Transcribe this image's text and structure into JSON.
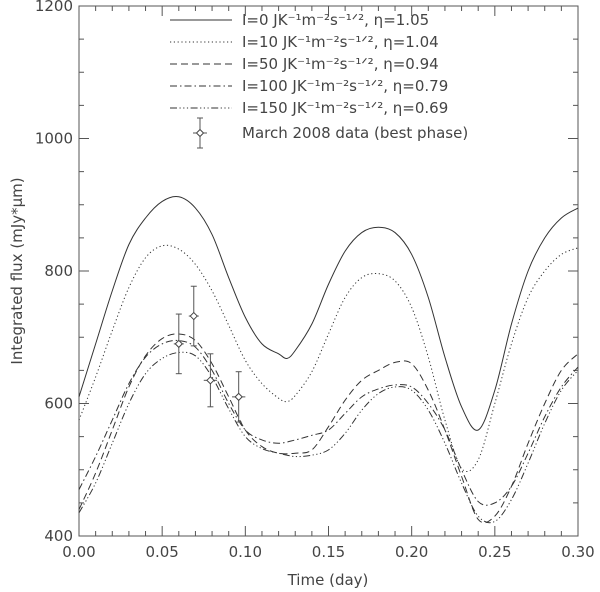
{
  "chart_data": {
    "type": "line",
    "xlabel": "Time (day)",
    "ylabel": "Integrated flux (mJy*μm)",
    "xlim": [
      0.0,
      0.3
    ],
    "ylim": [
      400,
      1200
    ],
    "xticks": [
      "0.00",
      "0.05",
      "0.10",
      "0.15",
      "0.20",
      "0.25",
      "0.30"
    ],
    "yticks": [
      "400",
      "600",
      "800",
      "1000",
      "1200"
    ],
    "legend_position": "top-right",
    "series": [
      {
        "name": "I=0 JK⁻¹m⁻²s⁻¹ᐟ², η=1.05",
        "dash": "solid",
        "x": [
          0.0,
          0.01,
          0.02,
          0.03,
          0.04,
          0.05,
          0.06,
          0.07,
          0.08,
          0.09,
          0.1,
          0.11,
          0.12,
          0.125,
          0.13,
          0.14,
          0.15,
          0.16,
          0.17,
          0.18,
          0.19,
          0.2,
          0.21,
          0.22,
          0.23,
          0.24,
          0.25,
          0.26,
          0.27,
          0.28,
          0.29,
          0.3
        ],
        "y": [
          610,
          690,
          770,
          840,
          880,
          905,
          912,
          895,
          855,
          790,
          730,
          690,
          675,
          668,
          680,
          720,
          780,
          830,
          858,
          866,
          858,
          825,
          760,
          670,
          595,
          560,
          620,
          720,
          800,
          850,
          880,
          895
        ]
      },
      {
        "name": "I=10 JK⁻¹m⁻²s⁻¹ᐟ², η=1.04",
        "dash": "dotted",
        "x": [
          0.0,
          0.01,
          0.02,
          0.03,
          0.04,
          0.05,
          0.06,
          0.07,
          0.08,
          0.09,
          0.1,
          0.11,
          0.12,
          0.125,
          0.13,
          0.14,
          0.15,
          0.16,
          0.17,
          0.18,
          0.19,
          0.2,
          0.21,
          0.22,
          0.23,
          0.24,
          0.25,
          0.26,
          0.27,
          0.28,
          0.29,
          0.3
        ],
        "y": [
          575,
          640,
          710,
          775,
          820,
          838,
          833,
          810,
          770,
          718,
          665,
          630,
          608,
          603,
          612,
          648,
          705,
          760,
          790,
          796,
          785,
          745,
          670,
          575,
          502,
          515,
          600,
          690,
          760,
          800,
          825,
          835
        ]
      },
      {
        "name": "I=50 JK⁻¹m⁻²s⁻¹ᐟ², η=0.94",
        "dash": "dashed",
        "x": [
          0.0,
          0.01,
          0.02,
          0.03,
          0.04,
          0.05,
          0.06,
          0.07,
          0.08,
          0.09,
          0.1,
          0.11,
          0.12,
          0.13,
          0.14,
          0.15,
          0.16,
          0.17,
          0.18,
          0.19,
          0.2,
          0.21,
          0.22,
          0.23,
          0.24,
          0.25,
          0.26,
          0.27,
          0.28,
          0.29,
          0.3
        ],
        "y": [
          440,
          495,
          560,
          625,
          672,
          698,
          705,
          695,
          660,
          610,
          560,
          535,
          525,
          525,
          530,
          565,
          605,
          635,
          650,
          662,
          660,
          620,
          560,
          490,
          425,
          430,
          475,
          540,
          600,
          650,
          675
        ]
      },
      {
        "name": "I=100 JK⁻¹m⁻²s⁻¹ᐟ², η=0.79",
        "dash": "dashdot",
        "x": [
          0.0,
          0.01,
          0.02,
          0.03,
          0.04,
          0.05,
          0.06,
          0.07,
          0.08,
          0.09,
          0.1,
          0.11,
          0.12,
          0.13,
          0.14,
          0.15,
          0.16,
          0.17,
          0.18,
          0.19,
          0.2,
          0.21,
          0.22,
          0.23,
          0.24,
          0.25,
          0.26,
          0.27,
          0.28,
          0.29,
          0.3
        ],
        "y": [
          470,
          520,
          575,
          630,
          670,
          690,
          695,
          685,
          650,
          600,
          560,
          545,
          540,
          545,
          552,
          560,
          585,
          610,
          622,
          628,
          625,
          600,
          560,
          500,
          452,
          450,
          475,
          525,
          580,
          625,
          655
        ]
      },
      {
        "name": "I=150 JK⁻¹m⁻²s⁻¹ᐟ², η=0.69",
        "dash": "dashdotdotdot",
        "x": [
          0.0,
          0.01,
          0.02,
          0.03,
          0.04,
          0.05,
          0.06,
          0.07,
          0.08,
          0.09,
          0.1,
          0.11,
          0.12,
          0.13,
          0.14,
          0.15,
          0.16,
          0.17,
          0.18,
          0.19,
          0.2,
          0.21,
          0.22,
          0.23,
          0.24,
          0.25,
          0.26,
          0.27,
          0.28,
          0.29,
          0.3
        ],
        "y": [
          435,
          480,
          540,
          600,
          645,
          668,
          677,
          672,
          640,
          592,
          550,
          532,
          525,
          520,
          522,
          530,
          555,
          590,
          615,
          625,
          620,
          590,
          540,
          480,
          430,
          422,
          455,
          510,
          570,
          620,
          650
        ]
      }
    ],
    "data_points": {
      "name": "March 2008 data (best phase)",
      "points": [
        {
          "x": 0.06,
          "y": 690,
          "yerr": 45,
          "xerr": 0.003
        },
        {
          "x": 0.069,
          "y": 732,
          "yerr": 45,
          "xerr": 0.003
        },
        {
          "x": 0.079,
          "y": 635,
          "yerr": 40,
          "xerr": 0.004
        },
        {
          "x": 0.096,
          "y": 610,
          "yerr": 38,
          "xerr": 0.004
        }
      ]
    }
  }
}
